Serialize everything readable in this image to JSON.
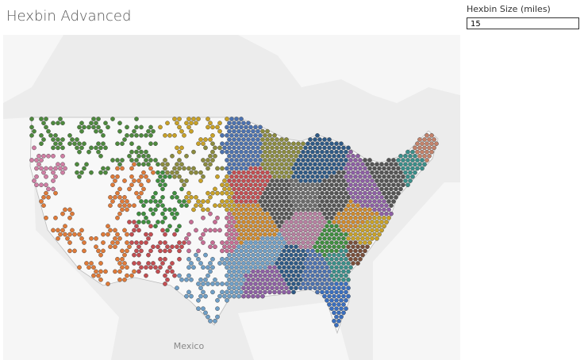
{
  "header": {
    "title": "Hexbin Advanced"
  },
  "parameter": {
    "label": "Hexbin Size (miles)",
    "value": "15"
  },
  "map": {
    "labels": [
      "Mexico"
    ]
  }
}
